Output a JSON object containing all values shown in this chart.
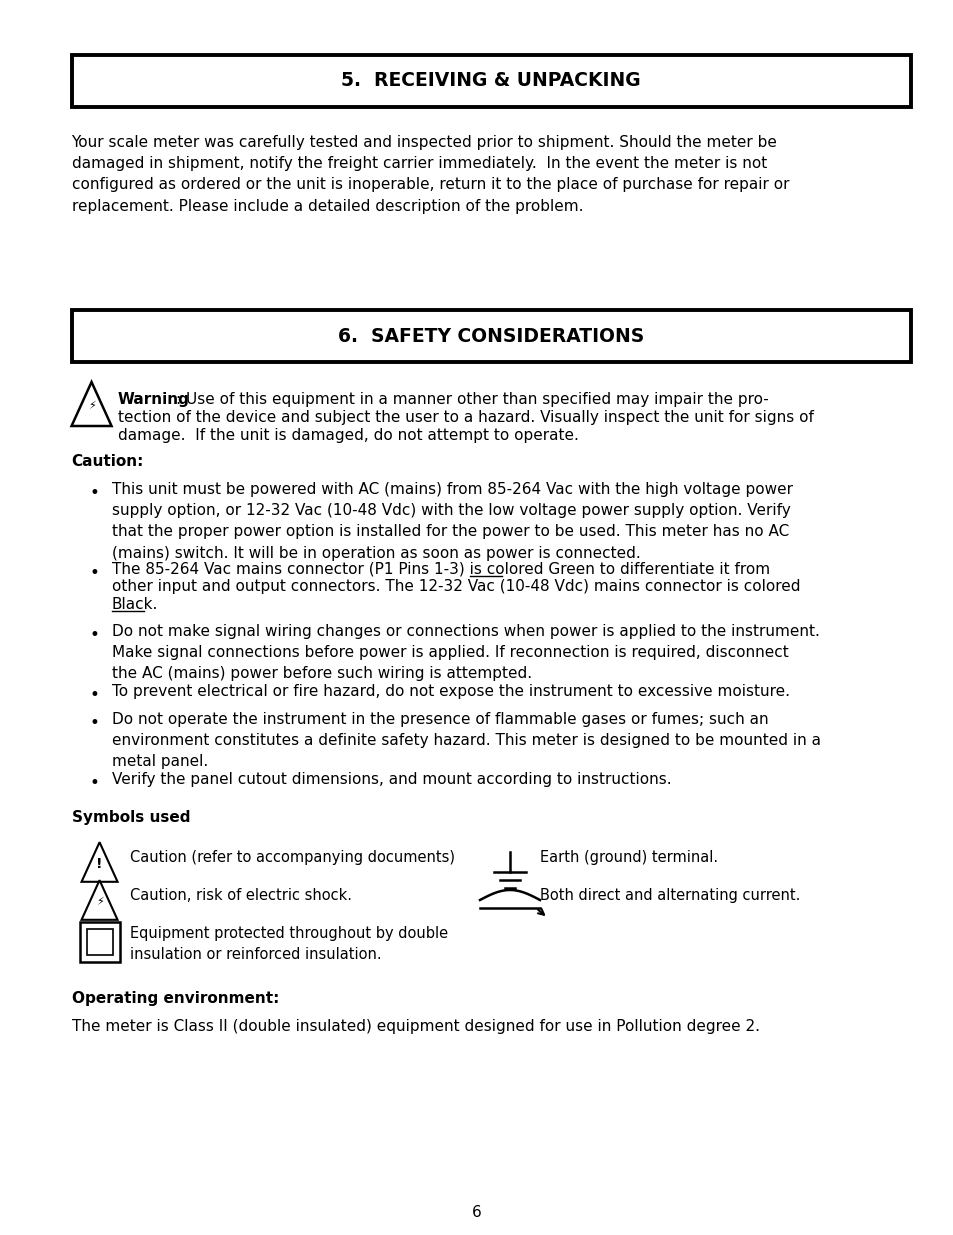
{
  "bg_color": "#ffffff",
  "text_color": "#000000",
  "section5_title": "5.  RECEIVING & UNPACKING",
  "section5_body": "Your scale meter was carefully tested and inspected prior to shipment. Should the meter be\ndamaged in shipment, notify the freight carrier immediately.  In the event the meter is not\nconfigured as ordered or the unit is inoperable, return it to the place of purchase for repair or\nreplacement. Please include a detailed description of the problem.",
  "section6_title": "6.  SAFETY CONSIDERATIONS",
  "caution_header": "Caution:",
  "bullet1": "This unit must be powered with AC (mains) from 85-264 Vac with the high voltage power\nsupply option, or 12-32 Vac (10-48 Vdc) with the low voltage power supply option. Verify\nthat the proper power option is installed for the power to be used. This meter has no AC\n(mains) switch. It will be in operation as soon as power is connected.",
  "bullet2a": "The 85-264 Vac mains connector (P1 Pins 1-3) is colored ",
  "bullet2b": "Green",
  "bullet2c": " to differentiate it from\nother input and output connectors. The 12-32 Vac (10-48 Vdc) mains connector is colored\n",
  "bullet2d": "Black",
  "bullet2e": ".",
  "bullet3": "Do not make signal wiring changes or connections when power is applied to the instrument.\nMake signal connections before power is applied. If reconnection is required, disconnect\nthe AC (mains) power before such wiring is attempted.",
  "bullet4": "To prevent electrical or fire hazard, do not expose the instrument to excessive moisture.",
  "bullet5": "Do not operate the instrument in the presence of flammable gases or fumes; such an\nenvironment constitutes a definite safety hazard. This meter is designed to be mounted in a\nmetal panel.",
  "bullet6": "Verify the panel cutout dimensions, and mount according to instructions.",
  "symbols_header": "Symbols used",
  "sym1_label": "Caution (refer to accompanying documents)",
  "sym2_label": "Caution, risk of electric shock.",
  "sym3_label": "Equipment protected throughout by double\ninsulation or reinforced insulation.",
  "sym4_label": "Earth (ground) terminal.",
  "sym5_label": "Both direct and alternating current.",
  "op_env_header": "Operating environment:",
  "op_env_body": "The meter is Class II (double insulated) equipment designed for use in Pollution degree 2.",
  "page_number": "6",
  "ml": 0.075,
  "mr": 0.955,
  "fs": 11.0,
  "fs_title": 13.5
}
